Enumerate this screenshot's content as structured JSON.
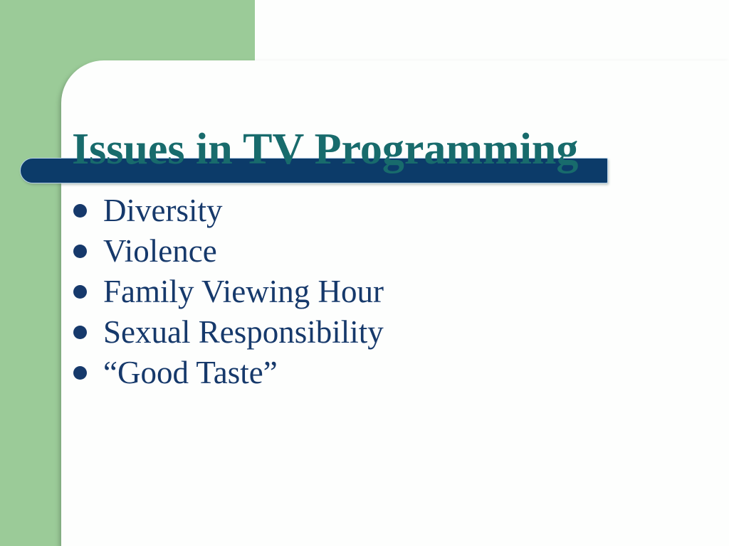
{
  "slide": {
    "title": "Issues in TV Programming",
    "bullets": [
      "Diversity",
      "Violence",
      "Family Viewing Hour",
      "Sexual Responsibility",
      "“Good Taste”"
    ],
    "colors": {
      "background_green": "#9bcb98",
      "panel_white": "#fdfefd",
      "bar_navy": "#0c3b69",
      "title_teal": "#186b6c",
      "text_navy": "#16396b"
    }
  }
}
